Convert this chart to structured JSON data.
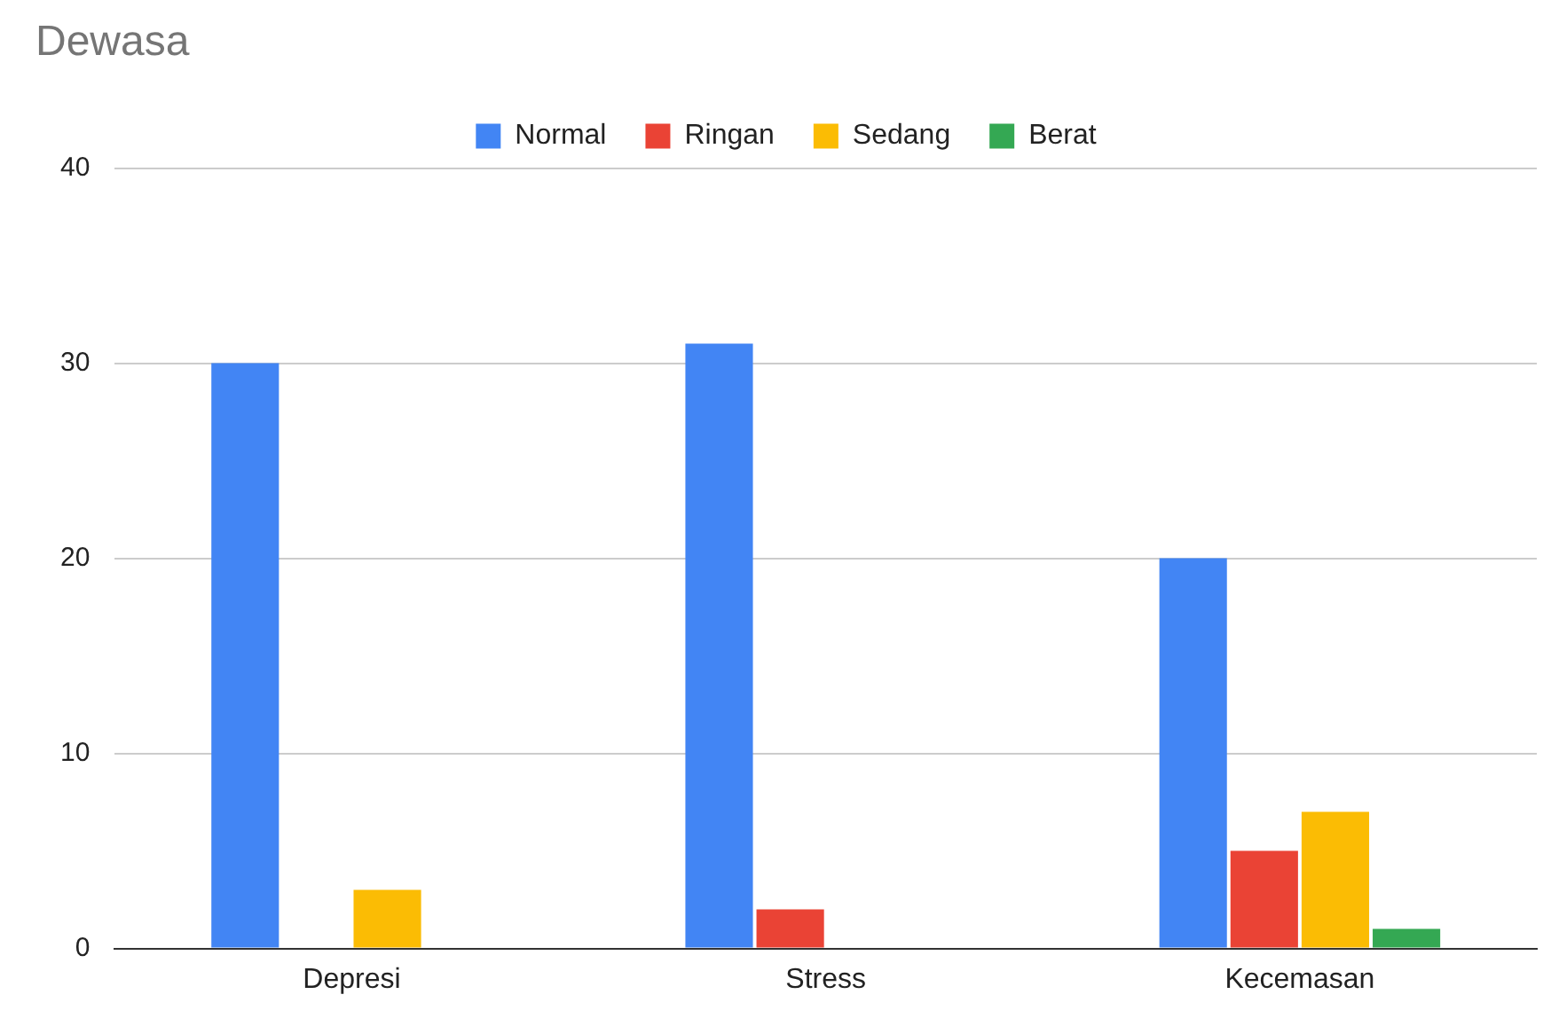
{
  "chart_data": {
    "type": "bar",
    "title": "Dewasa",
    "categories": [
      "Depresi",
      "Stress",
      "Kecemasan"
    ],
    "series": [
      {
        "name": "Normal",
        "color": "#4285f4",
        "values": [
          30,
          31,
          20
        ]
      },
      {
        "name": "Ringan",
        "color": "#ea4335",
        "values": [
          0,
          2,
          5
        ]
      },
      {
        "name": "Sedang",
        "color": "#fbbc04",
        "values": [
          3,
          0,
          7
        ]
      },
      {
        "name": "Berat",
        "color": "#34a853",
        "values": [
          0,
          0,
          1
        ]
      }
    ],
    "ylim": [
      0,
      40
    ],
    "yticks": [
      0,
      10,
      20,
      30,
      40
    ],
    "grid": "y",
    "legend": "top"
  }
}
